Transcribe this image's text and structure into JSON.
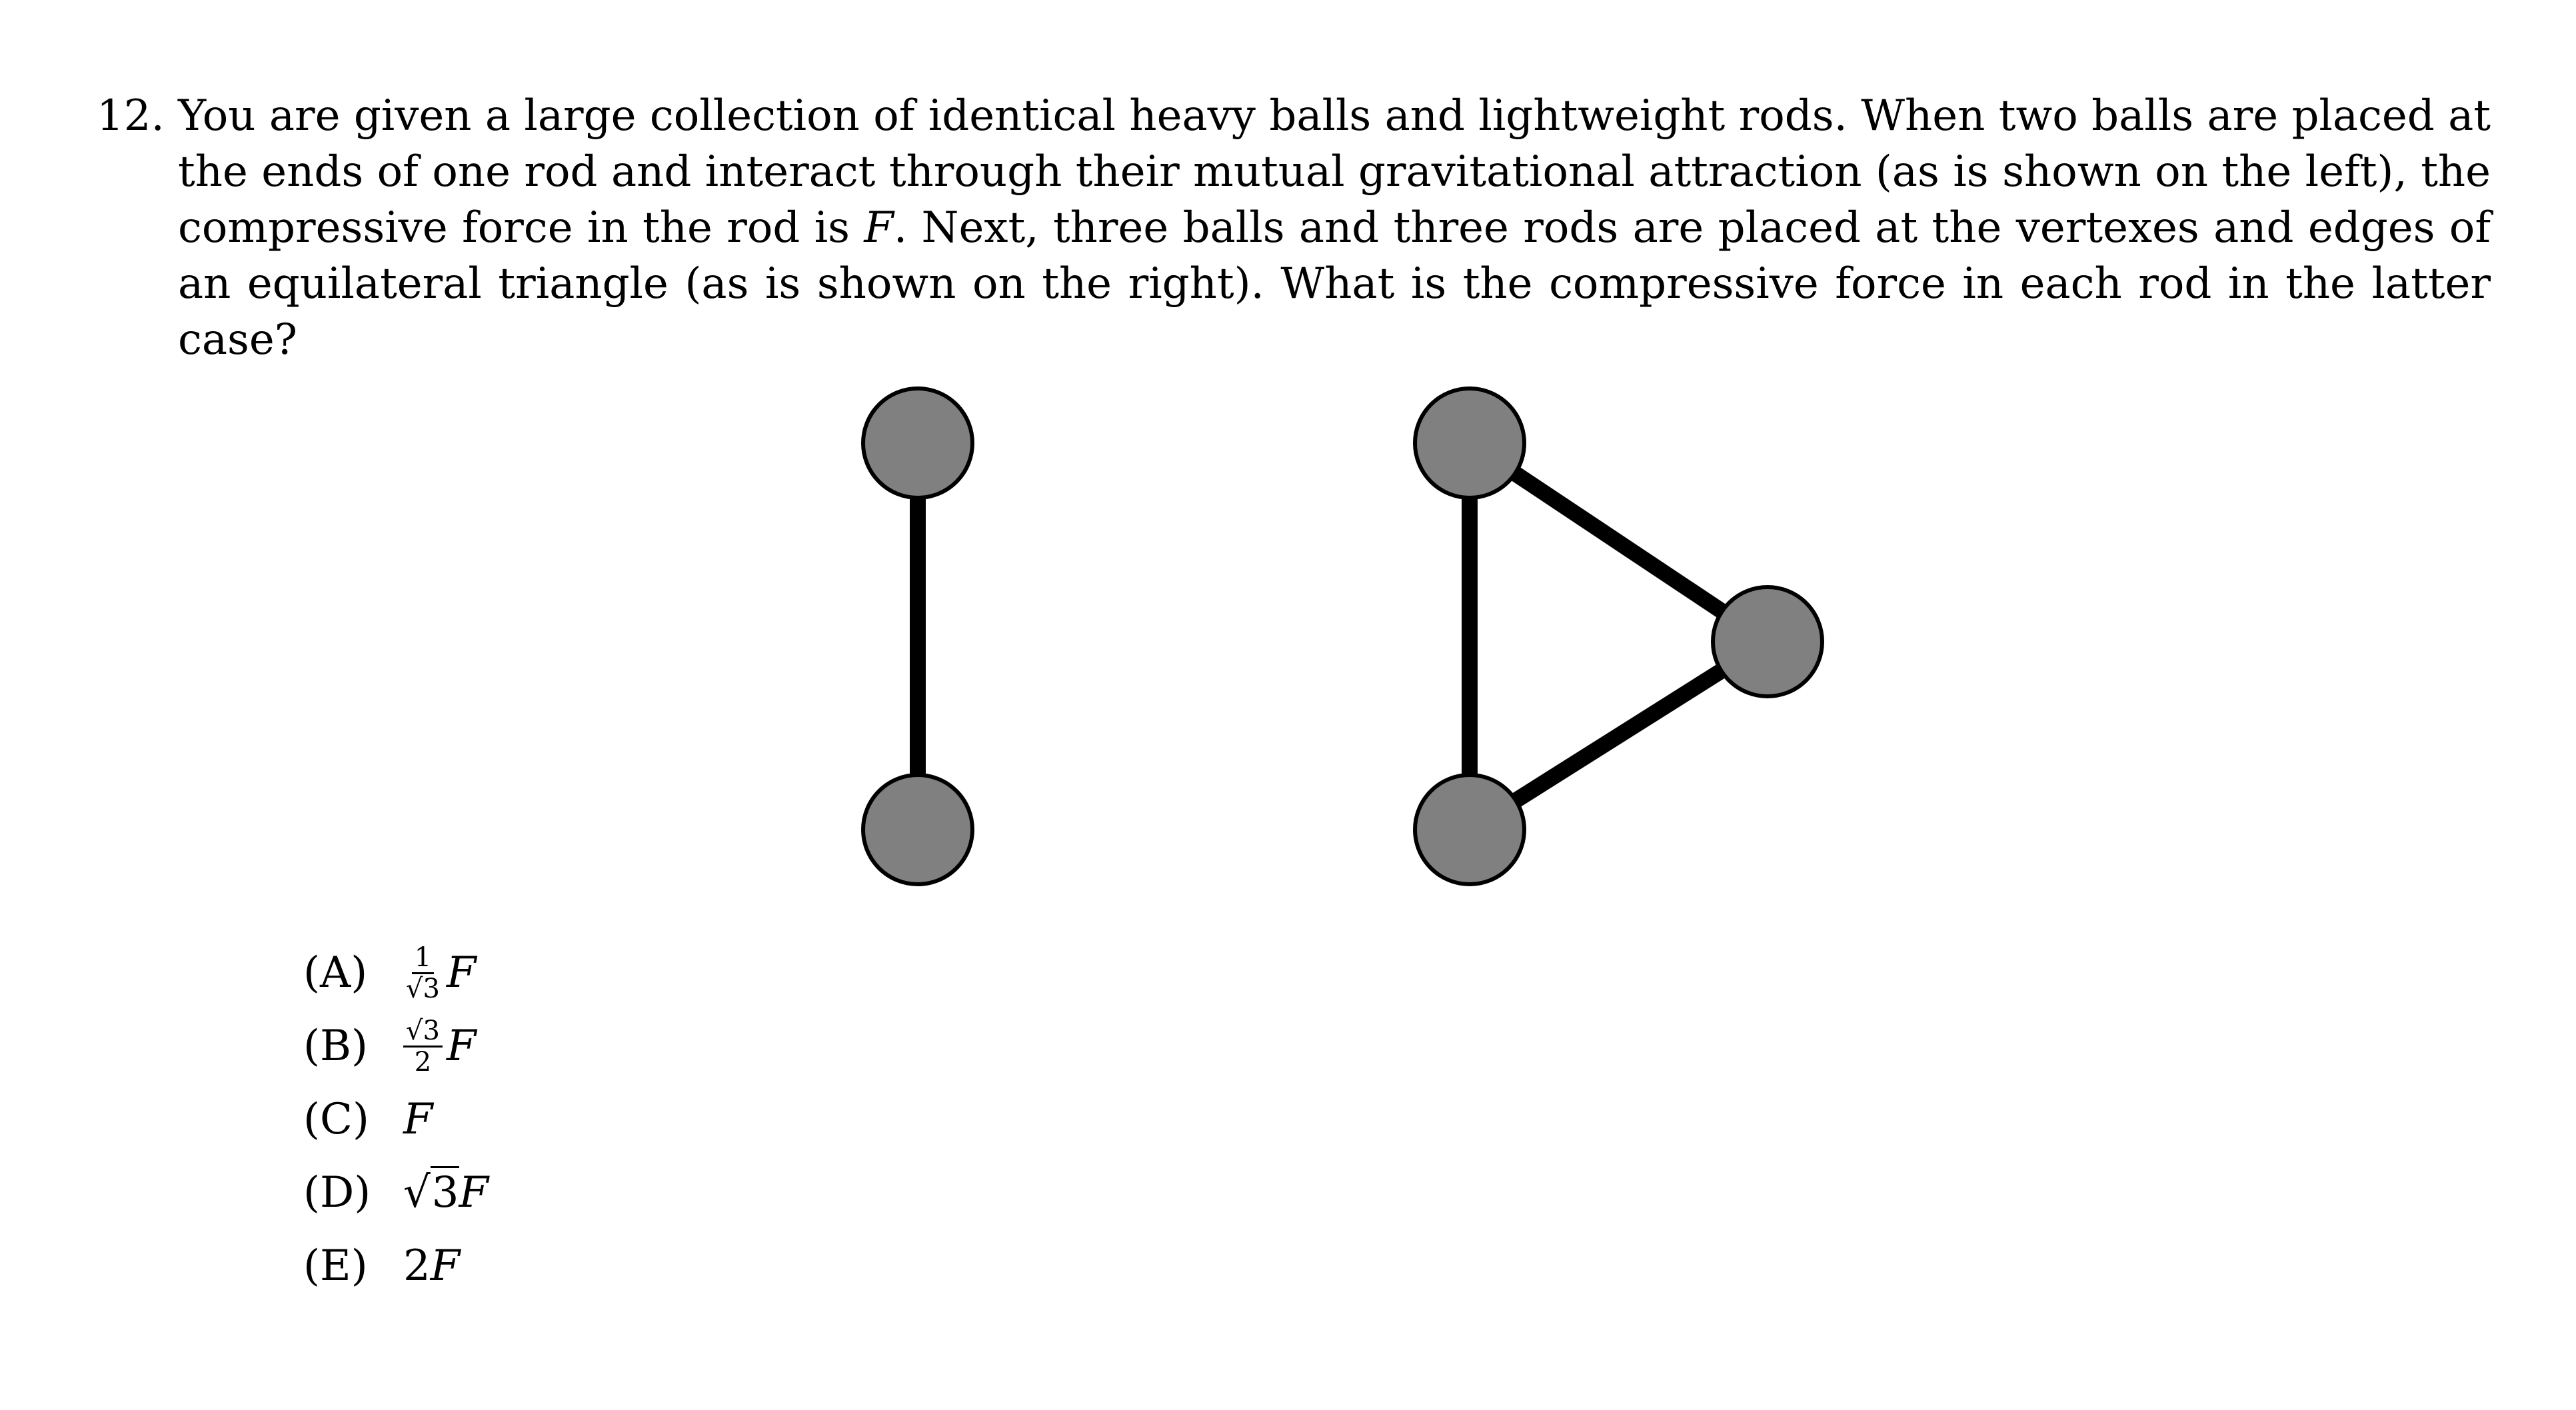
{
  "problem": {
    "number": "12.",
    "text": "You are given a large collection of identical heavy balls and lightweight rods. When two balls are placed at the ends of one rod and interact through their mutual gravitational attraction (as is shown on the left), the compressive force in the rod is F. Next, three balls and three rods are placed at the vertexes and edges of an equilateral triangle (as is shown on the right). What is the compressive force in each rod in the latter case?",
    "text_parts": {
      "before_F": "You are given a large collection of identical heavy balls and lightweight rods. When two balls are placed at the ends of one rod and interact through their mutual gravitational attraction (as is shown on the left), the compressive force in the rod is ",
      "F": "F",
      "after_F": ". Next, three balls and three rods are placed at the vertexes and edges of an equilateral triangle (as is shown on the right). What is the compressive force in each rod in the latter case?"
    }
  },
  "figure": {
    "ball_color": "#808080",
    "ball_outline": "#000000",
    "rod_color": "#000000"
  },
  "choices": [
    {
      "label": "(A)",
      "num": "1",
      "den": "√3",
      "var": "F"
    },
    {
      "label": "(B)",
      "num": "√3",
      "den": "2",
      "var": "F"
    },
    {
      "label": "(C)",
      "text": "F"
    },
    {
      "label": "(D)",
      "sqrt": "3",
      "var": "F"
    },
    {
      "label": "(E)",
      "coef": "2",
      "var": "F"
    }
  ]
}
